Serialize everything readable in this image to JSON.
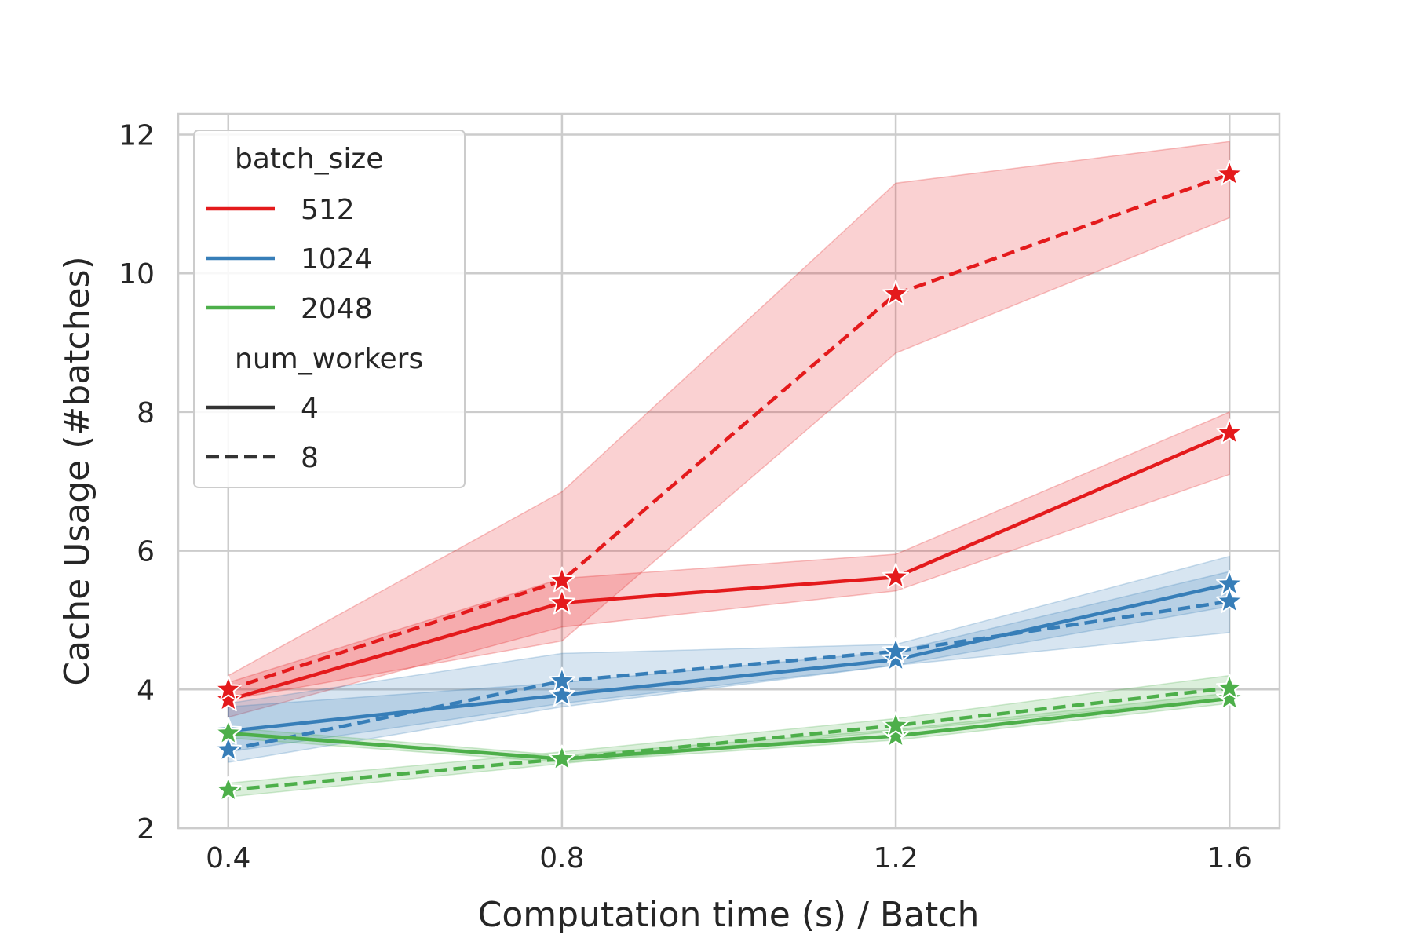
{
  "chart_data": {
    "type": "line",
    "xlabel": "Computation time (s) / Batch",
    "ylabel": "Cache Usage (#batches)",
    "x": [
      0.4,
      0.8,
      1.2,
      1.6
    ],
    "xticks": [
      "0.4",
      "0.8",
      "1.2",
      "1.6"
    ],
    "yticks": [
      "2",
      "4",
      "6",
      "8",
      "10",
      "12"
    ],
    "xlim": [
      0.34,
      1.66
    ],
    "ylim": [
      2.0,
      12.3
    ],
    "grid": true,
    "legend": {
      "placement": "top-left",
      "hue_title": "batch_size",
      "style_title": "num_workers",
      "hue_items": [
        {
          "label": "512",
          "color": "#e41a1c"
        },
        {
          "label": "1024",
          "color": "#377eb8"
        },
        {
          "label": "2048",
          "color": "#4daf4a"
        }
      ],
      "style_items": [
        {
          "label": "4",
          "dash": "solid"
        },
        {
          "label": "8",
          "dash": "dashed"
        }
      ]
    },
    "series": [
      {
        "batch_size": "512",
        "num_workers": "4",
        "color": "#e41a1c",
        "dash": "solid",
        "y": [
          3.85,
          5.25,
          5.62,
          7.7
        ],
        "lower": [
          3.6,
          4.9,
          5.42,
          7.1
        ],
        "upper": [
          4.1,
          5.6,
          5.95,
          8.0
        ]
      },
      {
        "batch_size": "512",
        "num_workers": "8",
        "color": "#e41a1c",
        "dash": "dashed",
        "y": [
          4.0,
          5.57,
          9.7,
          11.43
        ],
        "lower": [
          3.85,
          4.7,
          8.85,
          10.8
        ],
        "upper": [
          4.2,
          6.85,
          11.3,
          11.9
        ]
      },
      {
        "batch_size": "1024",
        "num_workers": "4",
        "color": "#377eb8",
        "dash": "solid",
        "y": [
          3.4,
          3.92,
          4.43,
          5.52
        ],
        "lower": [
          3.1,
          3.8,
          4.35,
          5.2
        ],
        "upper": [
          3.75,
          4.1,
          4.55,
          5.7
        ]
      },
      {
        "batch_size": "1024",
        "num_workers": "8",
        "color": "#377eb8",
        "dash": "dashed",
        "y": [
          3.13,
          4.12,
          4.55,
          5.27
        ],
        "lower": [
          2.95,
          3.75,
          4.35,
          4.82
        ],
        "upper": [
          3.8,
          4.52,
          4.65,
          5.92
        ]
      },
      {
        "batch_size": "2048",
        "num_workers": "4",
        "color": "#4daf4a",
        "dash": "solid",
        "y": [
          3.37,
          3.0,
          3.33,
          3.87
        ],
        "lower": [
          3.3,
          2.95,
          3.27,
          3.8
        ],
        "upper": [
          3.45,
          3.05,
          3.42,
          3.95
        ]
      },
      {
        "batch_size": "2048",
        "num_workers": "8",
        "color": "#4daf4a",
        "dash": "dashed",
        "y": [
          2.55,
          3.0,
          3.48,
          4.02
        ],
        "lower": [
          2.45,
          2.93,
          3.4,
          3.88
        ],
        "upper": [
          2.65,
          3.1,
          3.58,
          4.2
        ]
      }
    ]
  }
}
